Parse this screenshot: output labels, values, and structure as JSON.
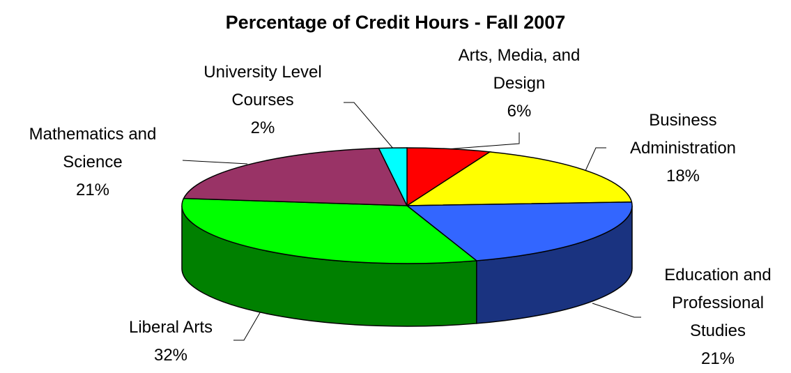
{
  "chart_data": {
    "type": "pie3d",
    "title": "Percentage of Credit Hours - Fall 2007",
    "categories": [
      "Arts, Media, and Design",
      "Business Administration",
      "Education and Professional Studies",
      "Liberal Arts",
      "Mathematics and Science",
      "University Level Courses"
    ],
    "values": [
      6,
      18,
      21,
      32,
      21,
      2
    ],
    "value_labels": [
      "6%",
      "18%",
      "21%",
      "32%",
      "21%",
      "2%"
    ],
    "colors": [
      "#ff0000",
      "#ffff00",
      "#3366ff",
      "#00ff00",
      "#993366",
      "#00ffff"
    ]
  }
}
